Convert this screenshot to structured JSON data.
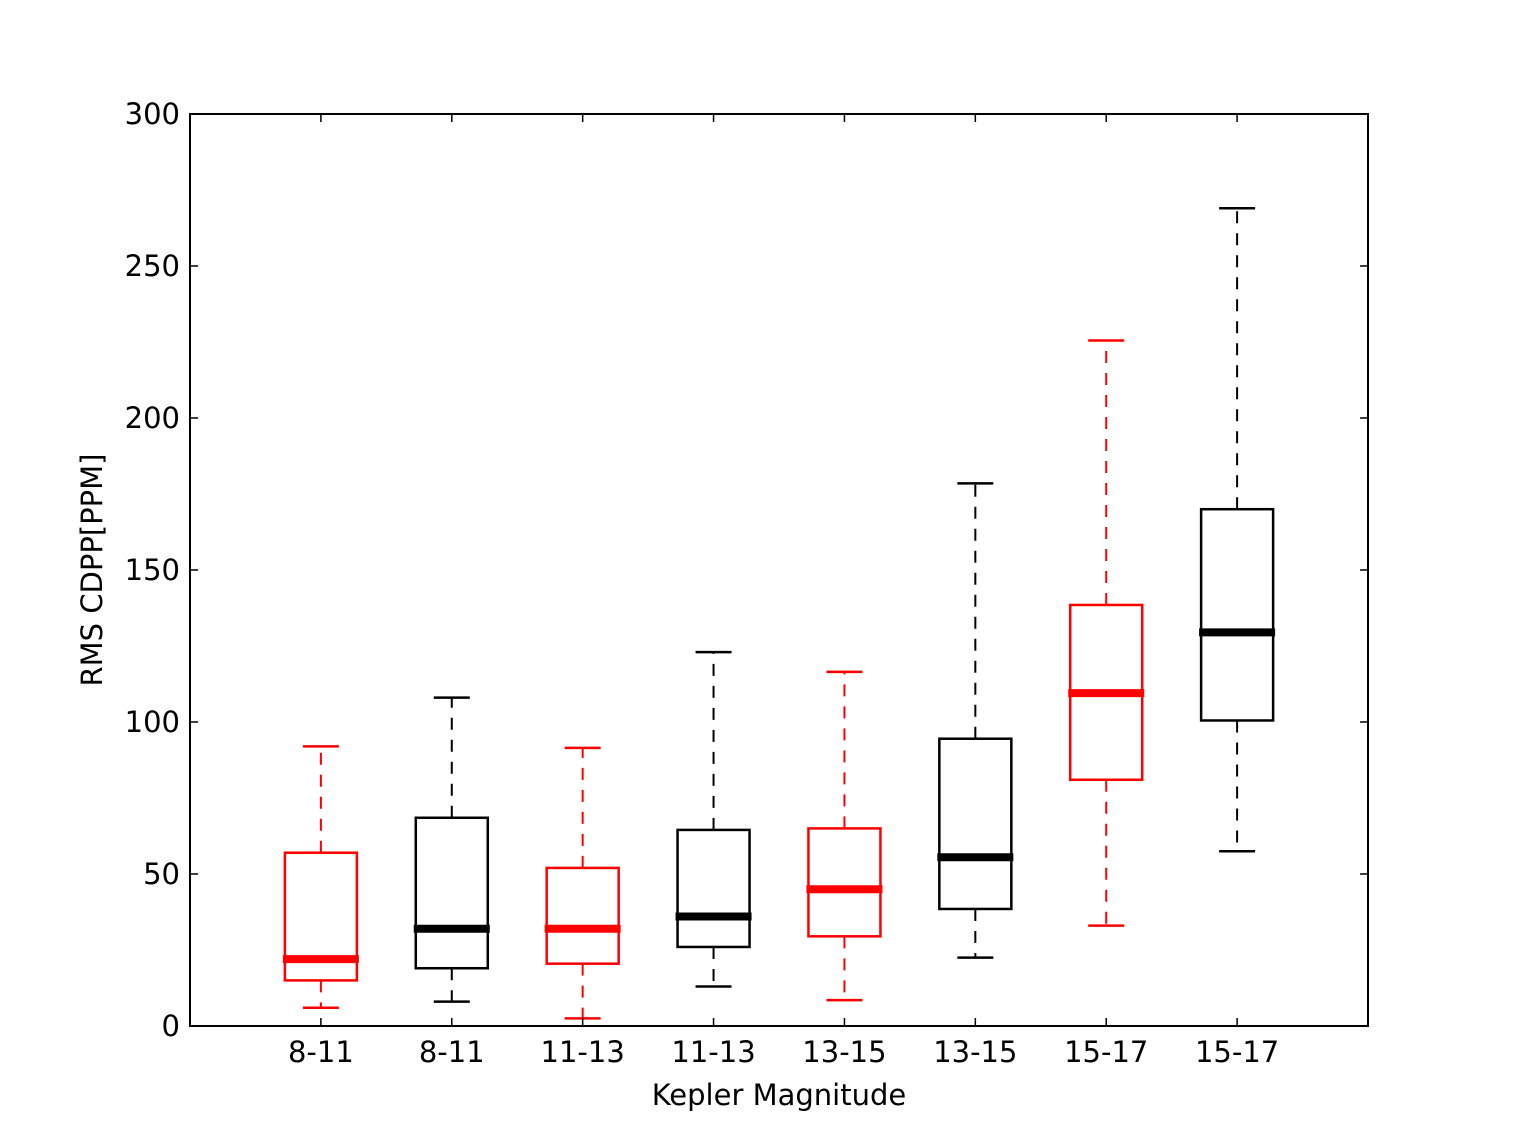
{
  "chart_data": {
    "type": "box",
    "title": "",
    "xlabel": "Kepler Magnitude",
    "ylabel": "RMS CDPP[PPM]",
    "ylim": [
      0,
      300
    ],
    "yticks": [
      0,
      50,
      100,
      150,
      200,
      250,
      300
    ],
    "categories": [
      "8-11",
      "8-11",
      "11-13",
      "11-13",
      "13-15",
      "13-15",
      "15-17",
      "15-17"
    ],
    "grid": false,
    "colors": [
      "#ff0000",
      "#000000",
      "#ff0000",
      "#000000",
      "#ff0000",
      "#000000",
      "#ff0000",
      "#000000"
    ],
    "boxes": [
      {
        "whisker_low": 6,
        "q1": 15,
        "median": 22,
        "q3": 57,
        "whisker_high": 92
      },
      {
        "whisker_low": 8,
        "q1": 19,
        "median": 32,
        "q3": 68.5,
        "whisker_high": 108
      },
      {
        "whisker_low": 2.5,
        "q1": 20.5,
        "median": 32,
        "q3": 52,
        "whisker_high": 91.5
      },
      {
        "whisker_low": 13,
        "q1": 26,
        "median": 36,
        "q3": 64.5,
        "whisker_high": 123
      },
      {
        "whisker_low": 8.5,
        "q1": 29.5,
        "median": 45,
        "q3": 65,
        "whisker_high": 116.5
      },
      {
        "whisker_low": 22.5,
        "q1": 38.5,
        "median": 55.5,
        "q3": 94.5,
        "whisker_high": 178.5
      },
      {
        "whisker_low": 33,
        "q1": 81,
        "median": 109.5,
        "q3": 138.5,
        "whisker_high": 225.5
      },
      {
        "whisker_low": 57.5,
        "q1": 100.5,
        "median": 129.5,
        "q3": 170,
        "whisker_high": 269
      }
    ]
  }
}
